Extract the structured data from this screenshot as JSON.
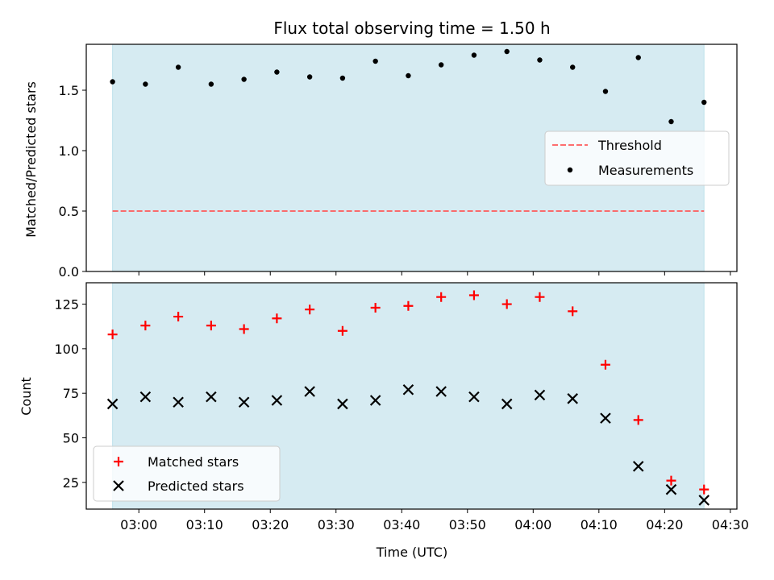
{
  "figure": {
    "title": "Flux total observing time = 1.50 h",
    "xlabel": "Time (UTC)"
  },
  "colors": {
    "band": "#add8e6",
    "threshold": "#ff5555",
    "measurements": "#000000",
    "matched": "#ff0000",
    "predicted": "#000000"
  },
  "chart_data": [
    {
      "type": "scatter",
      "panel": "top",
      "ylabel": "Matched/Predicted stars",
      "xlim": [
        "02:52",
        "04:31"
      ],
      "ylim": [
        0,
        1.88
      ],
      "yticks": [
        "0.0",
        "0.5",
        "1.0",
        "1.5"
      ],
      "ytick_values": [
        0,
        0.5,
        1.0,
        1.5
      ],
      "shaded_span": [
        "02:56",
        "04:26"
      ],
      "legend_position": "center-right",
      "series": [
        {
          "name": "Threshold",
          "kind": "dashed-line",
          "x": [
            "02:56",
            "04:26"
          ],
          "y": [
            0.5,
            0.5
          ]
        },
        {
          "name": "Measurements",
          "kind": "dot",
          "x": [
            "02:56",
            "03:01",
            "03:06",
            "03:11",
            "03:16",
            "03:21",
            "03:26",
            "03:31",
            "03:36",
            "03:41",
            "03:46",
            "03:51",
            "03:56",
            "04:01",
            "04:06",
            "04:11",
            "04:16",
            "04:21",
            "04:26"
          ],
          "y": [
            1.57,
            1.55,
            1.69,
            1.55,
            1.59,
            1.65,
            1.61,
            1.6,
            1.74,
            1.62,
            1.71,
            1.79,
            1.82,
            1.75,
            1.69,
            1.49,
            1.77,
            1.24,
            1.4
          ]
        }
      ]
    },
    {
      "type": "scatter",
      "panel": "bottom",
      "xlabel": "Time (UTC)",
      "ylabel": "Count",
      "xlim": [
        "02:52",
        "04:31"
      ],
      "ylim": [
        10,
        137
      ],
      "xticks": [
        "03:00",
        "03:10",
        "03:20",
        "03:30",
        "03:40",
        "03:50",
        "04:00",
        "04:10",
        "04:20",
        "04:30"
      ],
      "yticks": [
        "25",
        "50",
        "75",
        "100",
        "125"
      ],
      "ytick_values": [
        25,
        50,
        75,
        100,
        125
      ],
      "shaded_span": [
        "02:56",
        "04:26"
      ],
      "legend_position": "lower-left",
      "series": [
        {
          "name": "Matched stars",
          "kind": "plus",
          "x": [
            "02:56",
            "03:01",
            "03:06",
            "03:11",
            "03:16",
            "03:21",
            "03:26",
            "03:31",
            "03:36",
            "03:41",
            "03:46",
            "03:51",
            "03:56",
            "04:01",
            "04:06",
            "04:11",
            "04:16",
            "04:21",
            "04:26"
          ],
          "y": [
            108,
            113,
            118,
            113,
            111,
            117,
            122,
            110,
            123,
            124,
            129,
            130,
            125,
            129,
            121,
            91,
            60,
            26,
            21
          ]
        },
        {
          "name": "Predicted stars",
          "kind": "cross",
          "x": [
            "02:56",
            "03:01",
            "03:06",
            "03:11",
            "03:16",
            "03:21",
            "03:26",
            "03:31",
            "03:36",
            "03:41",
            "03:46",
            "03:51",
            "03:56",
            "04:01",
            "04:06",
            "04:11",
            "04:16",
            "04:21",
            "04:26"
          ],
          "y": [
            69,
            73,
            70,
            73,
            70,
            71,
            76,
            69,
            71,
            77,
            76,
            73,
            69,
            74,
            72,
            61,
            34,
            21,
            15
          ]
        }
      ]
    }
  ]
}
